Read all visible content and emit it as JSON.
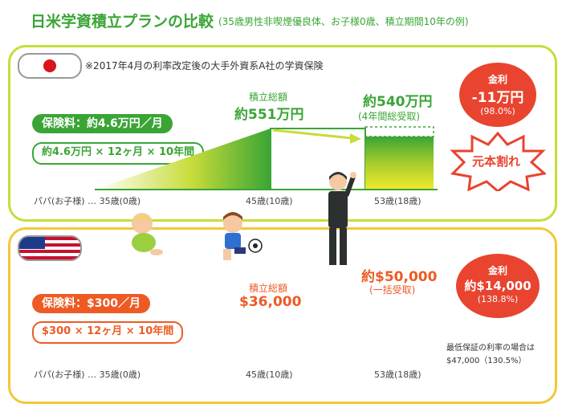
{
  "header": {
    "title": "日米学資積立プランの比較",
    "subtitle": "(35歳男性非喫煙優良体、お子様0歳、積立期間10年の例)"
  },
  "japan": {
    "note": "※2017年4月の利率改定後の大手外資系A社の学資保険",
    "premium_label": "保険料：約4.6万円／月",
    "formula": "約4.6万円 × 12ヶ月 × 10年間",
    "total_title": "積立総額",
    "total_value": "約551万円",
    "payout_value": "約540万円",
    "payout_note": "(4年間総受取)",
    "interest_title": "金利",
    "interest_value": "-11万円",
    "interest_rate": "(98.0%)",
    "loss_label": "元本割れ",
    "axis_left": "パパ(お子様) … 35歳(0歳)",
    "axis_mid": "45歳(10歳)",
    "axis_right": "53歳(18歳)",
    "colors": {
      "main": "#3aa535",
      "accent": "#c8dc3a",
      "bubble": "#e8442f"
    }
  },
  "usa": {
    "premium_label": "保険料：$300／月",
    "formula": "$300 × 12ヶ月 × 10年間",
    "total_title": "積立総額",
    "total_value": "$36,000",
    "payout_value": "約$50,000",
    "payout_note": "(一括受取)",
    "interest_title": "金利",
    "interest_value": "約$14,000",
    "interest_rate": "(138.8%)",
    "guarantee_line1": "最低保証の利率の場合は",
    "guarantee_line2": "$47,000（130.5%）",
    "axis_left": "パパ(お子様) … 35歳(0歳)",
    "axis_mid": "45歳(10歳)",
    "axis_right": "53歳(18歳)",
    "colors": {
      "main": "#ee5a24",
      "accent": "#f5c631",
      "bubble": "#e8442f"
    }
  }
}
